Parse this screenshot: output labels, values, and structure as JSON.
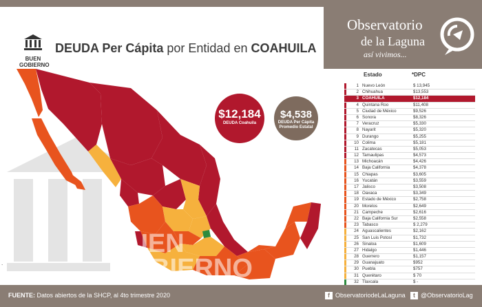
{
  "title": {
    "part1": "DEUDA Per Cápita",
    "part2": "por Entidad en",
    "part3": "COAHUILA"
  },
  "logo": {
    "line1": "BUEN",
    "line2": "GOBIERNO"
  },
  "brand": {
    "line1": "Observatorio",
    "line2": "de la Laguna",
    "tagline": "así vivimos..."
  },
  "bubbles": [
    {
      "value": "$12,184",
      "label1": "DEUDA Coahuila",
      "label2": ""
    },
    {
      "value": "$4,538",
      "label1": "DEUDA Per Cápita",
      "label2": "Promedio Estatal"
    }
  ],
  "watermark": {
    "line1": "BUEN",
    "line2": "GOBIERNO"
  },
  "table": {
    "head_state": "Estado",
    "head_value": "*DPC",
    "rows": [
      {
        "n": "1",
        "state": "Nuevo León",
        "value": "$ 13,945",
        "color": "#b1182d"
      },
      {
        "n": "2",
        "state": "Chihuahua",
        "value": "$13,553",
        "color": "#b1182d"
      },
      {
        "n": "3",
        "state": "COAHUILA",
        "value": "$12,184",
        "color": "#b1182d"
      },
      {
        "n": "4",
        "state": "Quintana Roo",
        "value": "$11,408",
        "color": "#b1182d"
      },
      {
        "n": "5",
        "state": "Ciudad de México",
        "value": "$9,526",
        "color": "#b1182d"
      },
      {
        "n": "6",
        "state": "Sonora",
        "value": "$8,326",
        "color": "#b1182d"
      },
      {
        "n": "7",
        "state": "Veracruz",
        "value": "$5,330",
        "color": "#b1182d"
      },
      {
        "n": "8",
        "state": "Nayarit",
        "value": "$5,320",
        "color": "#b1182d"
      },
      {
        "n": "9",
        "state": "Durango",
        "value": "$5,255",
        "color": "#b1182d"
      },
      {
        "n": "10",
        "state": "Colima",
        "value": "$5,181",
        "color": "#b1182d"
      },
      {
        "n": "11",
        "state": "Zacatecas",
        "value": "$5,053",
        "color": "#b1182d"
      },
      {
        "n": "12",
        "state": "Tamaulipas",
        "value": "$4,573",
        "color": "#b1182d"
      },
      {
        "n": "13",
        "state": "Michoacán",
        "value": "$4,426",
        "color": "#e8541e"
      },
      {
        "n": "14",
        "state": "Baja California",
        "value": "$4,378",
        "color": "#e8541e"
      },
      {
        "n": "15",
        "state": "Chiapas",
        "value": "$3,605",
        "color": "#e8541e"
      },
      {
        "n": "16",
        "state": "Yucatán",
        "value": "$3,559",
        "color": "#e8541e"
      },
      {
        "n": "17",
        "state": "Jalisco",
        "value": "$3,508",
        "color": "#e8541e"
      },
      {
        "n": "18",
        "state": "Oaxaca",
        "value": "$3,349",
        "color": "#e8541e"
      },
      {
        "n": "19",
        "state": "Estado de México",
        "value": "$2,758",
        "color": "#e8541e"
      },
      {
        "n": "20",
        "state": "Morelos",
        "value": "$2,649",
        "color": "#e8541e"
      },
      {
        "n": "21",
        "state": "Campeche",
        "value": "$2,616",
        "color": "#e8541e"
      },
      {
        "n": "22",
        "state": "Baja California Sur",
        "value": "$2,558",
        "color": "#e8541e"
      },
      {
        "n": "23",
        "state": "Tabasco",
        "value": "$ 2,279",
        "color": "#e8541e"
      },
      {
        "n": "24",
        "state": "Aguascalientes",
        "value": "$2,162",
        "color": "#f6b13d"
      },
      {
        "n": "25",
        "state": "San Luis Potosí",
        "value": "$1,732",
        "color": "#f6b13d"
      },
      {
        "n": "26",
        "state": "Sinaloa",
        "value": "$1,609",
        "color": "#f6b13d"
      },
      {
        "n": "27",
        "state": "Hidalgo",
        "value": "$1,446",
        "color": "#f6b13d"
      },
      {
        "n": "28",
        "state": "Guerrero",
        "value": "$1,157",
        "color": "#f6b13d"
      },
      {
        "n": "29",
        "state": "Guanajuato",
        "value": "$952",
        "color": "#f6b13d"
      },
      {
        "n": "30",
        "state": "Puebla",
        "value": "$757",
        "color": "#f6b13d"
      },
      {
        "n": "31",
        "state": "Querétaro",
        "value": "$ 70",
        "color": "#f6b13d"
      },
      {
        "n": "32",
        "state": "Tlaxcala",
        "value": "$ -",
        "color": "#2e8b3e"
      }
    ]
  },
  "footer": {
    "source_label": "FUENTE:",
    "source_text": "Datos abiertos de la SHCP, al 4to trimestre 2020",
    "facebook": "ObservatoriodeLaLaguna",
    "twitter": "@ObservatorioLag",
    "facebook_icon": "f",
    "twitter_icon": "t"
  },
  "colors": {
    "dark_red": "#b1182d",
    "orange": "#e8541e",
    "yellow": "#f6b13d",
    "green": "#2e8b3e",
    "taupe": "#8a7d74"
  }
}
